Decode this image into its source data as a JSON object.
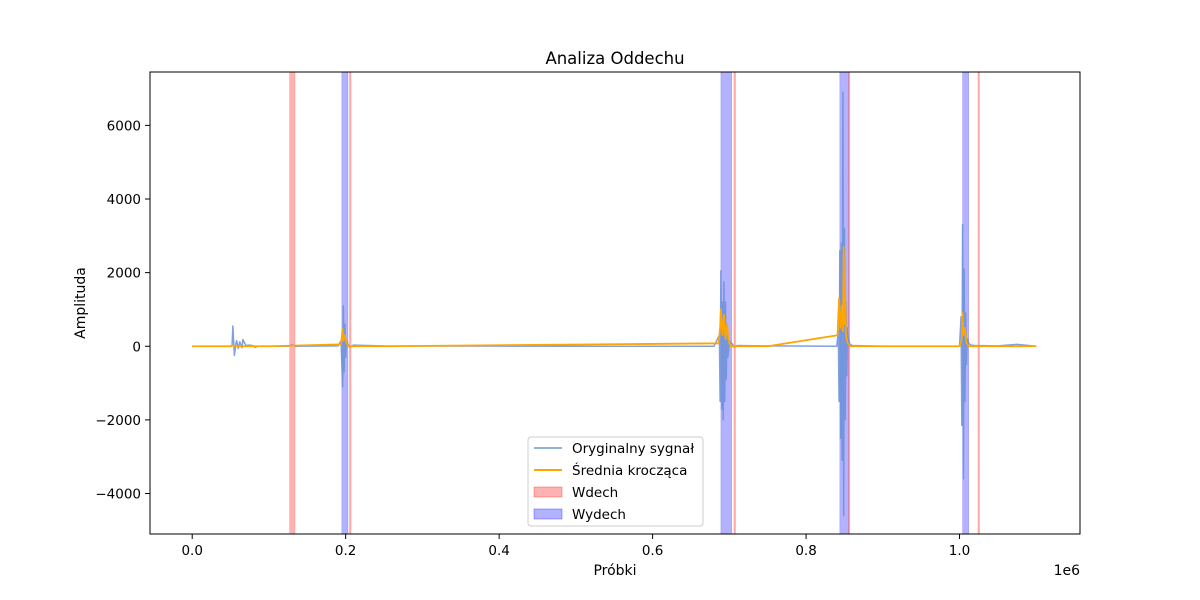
{
  "chart_data": {
    "type": "line",
    "title": "Analiza Oddechu",
    "xlabel": "Próbki",
    "ylabel": "Amplituda",
    "x_offset_label": "1e6",
    "xlim": [
      -0.055,
      1.157
    ],
    "ylim": [
      -5100,
      7450
    ],
    "x_ticks": [
      0.0,
      0.2,
      0.4,
      0.6,
      0.8,
      1.0
    ],
    "x_tick_labels": [
      "0.0",
      "0.2",
      "0.4",
      "0.6",
      "0.8",
      "1.0"
    ],
    "y_ticks": [
      -4000,
      -2000,
      0,
      2000,
      4000,
      6000
    ],
    "y_tick_labels": [
      "−4000",
      "−2000",
      "0",
      "2000",
      "4000",
      "6000"
    ],
    "grid": false,
    "legend_position": "lower center",
    "legend": [
      {
        "label": "Oryginalny sygnał",
        "kind": "line",
        "color": "#8fb3d5"
      },
      {
        "label": "Średnia krocząca",
        "kind": "line",
        "color": "#ffa500"
      },
      {
        "label": "Wdech",
        "kind": "span",
        "color": "#ff0000"
      },
      {
        "label": "Wydech",
        "kind": "span",
        "color": "#0000ff"
      }
    ],
    "inhale_spans": [
      [
        0.127,
        0.134
      ],
      [
        0.205,
        0.207
      ],
      [
        0.706,
        0.708
      ],
      [
        0.855,
        0.857
      ],
      [
        1.024,
        1.026
      ]
    ],
    "exhale_spans": [
      [
        0.195,
        0.203
      ],
      [
        0.689,
        0.703
      ],
      [
        0.844,
        0.855
      ],
      [
        1.004,
        1.012
      ]
    ],
    "series": [
      {
        "name": "Oryginalny sygnał",
        "color": "#6a8fd8",
        "x": [
          0.0,
          0.05,
          0.052,
          0.053,
          0.055,
          0.057,
          0.058,
          0.06,
          0.062,
          0.065,
          0.066,
          0.07,
          0.075,
          0.08,
          0.082,
          0.085,
          0.125,
          0.13,
          0.134,
          0.19,
          0.194,
          0.196,
          0.197,
          0.198,
          0.199,
          0.2,
          0.201,
          0.203,
          0.205,
          0.21,
          0.25,
          0.5,
          0.68,
          0.687,
          0.688,
          0.689,
          0.69,
          0.691,
          0.692,
          0.693,
          0.694,
          0.695,
          0.696,
          0.697,
          0.698,
          0.7,
          0.702,
          0.704,
          0.706,
          0.71,
          0.75,
          0.84,
          0.842,
          0.843,
          0.844,
          0.845,
          0.846,
          0.847,
          0.848,
          0.849,
          0.85,
          0.851,
          0.852,
          0.853,
          0.854,
          0.855,
          0.857,
          0.86,
          0.9,
          1.0,
          1.002,
          1.003,
          1.004,
          1.005,
          1.006,
          1.007,
          1.008,
          1.009,
          1.01,
          1.012,
          1.015,
          1.02,
          1.05,
          1.075,
          1.1
        ],
        "y": [
          0,
          0,
          10,
          550,
          -250,
          80,
          150,
          -60,
          120,
          -40,
          180,
          20,
          30,
          10,
          -30,
          0,
          0,
          40,
          0,
          10,
          150,
          -1100,
          1100,
          -700,
          600,
          -300,
          150,
          60,
          -20,
          30,
          10,
          0,
          0,
          300,
          -1500,
          2050,
          -1700,
          1200,
          -2000,
          1750,
          -1500,
          1200,
          -900,
          500,
          -300,
          150,
          100,
          60,
          -20,
          20,
          10,
          0,
          400,
          -1500,
          2600,
          -2500,
          2800,
          -3100,
          6900,
          -4600,
          3200,
          -2000,
          1200,
          -800,
          500,
          200,
          60,
          20,
          0,
          0,
          800,
          -2150,
          3300,
          -3600,
          2100,
          -1500,
          900,
          -500,
          200,
          80,
          30,
          20,
          10,
          50,
          0
        ]
      },
      {
        "name": "Średnia krocząca",
        "color": "#ffa500",
        "x": [
          0.0,
          0.05,
          0.053,
          0.056,
          0.1,
          0.194,
          0.196,
          0.197,
          0.199,
          0.201,
          0.204,
          0.25,
          0.686,
          0.688,
          0.689,
          0.691,
          0.693,
          0.695,
          0.697,
          0.699,
          0.702,
          0.75,
          0.841,
          0.843,
          0.845,
          0.847,
          0.848,
          0.849,
          0.85,
          0.851,
          0.852,
          0.854,
          0.857,
          0.95,
          1.0,
          1.003,
          1.004,
          1.005,
          1.007,
          1.009,
          1.012,
          1.05,
          1.1
        ],
        "y": [
          0,
          0,
          30,
          0,
          0,
          50,
          480,
          150,
          300,
          80,
          0,
          0,
          80,
          500,
          1000,
          300,
          850,
          200,
          600,
          150,
          0,
          0,
          300,
          1300,
          500,
          1100,
          400,
          2700,
          600,
          1400,
          300,
          100,
          0,
          0,
          0,
          200,
          900,
          300,
          500,
          100,
          0,
          0,
          0
        ]
      }
    ]
  }
}
